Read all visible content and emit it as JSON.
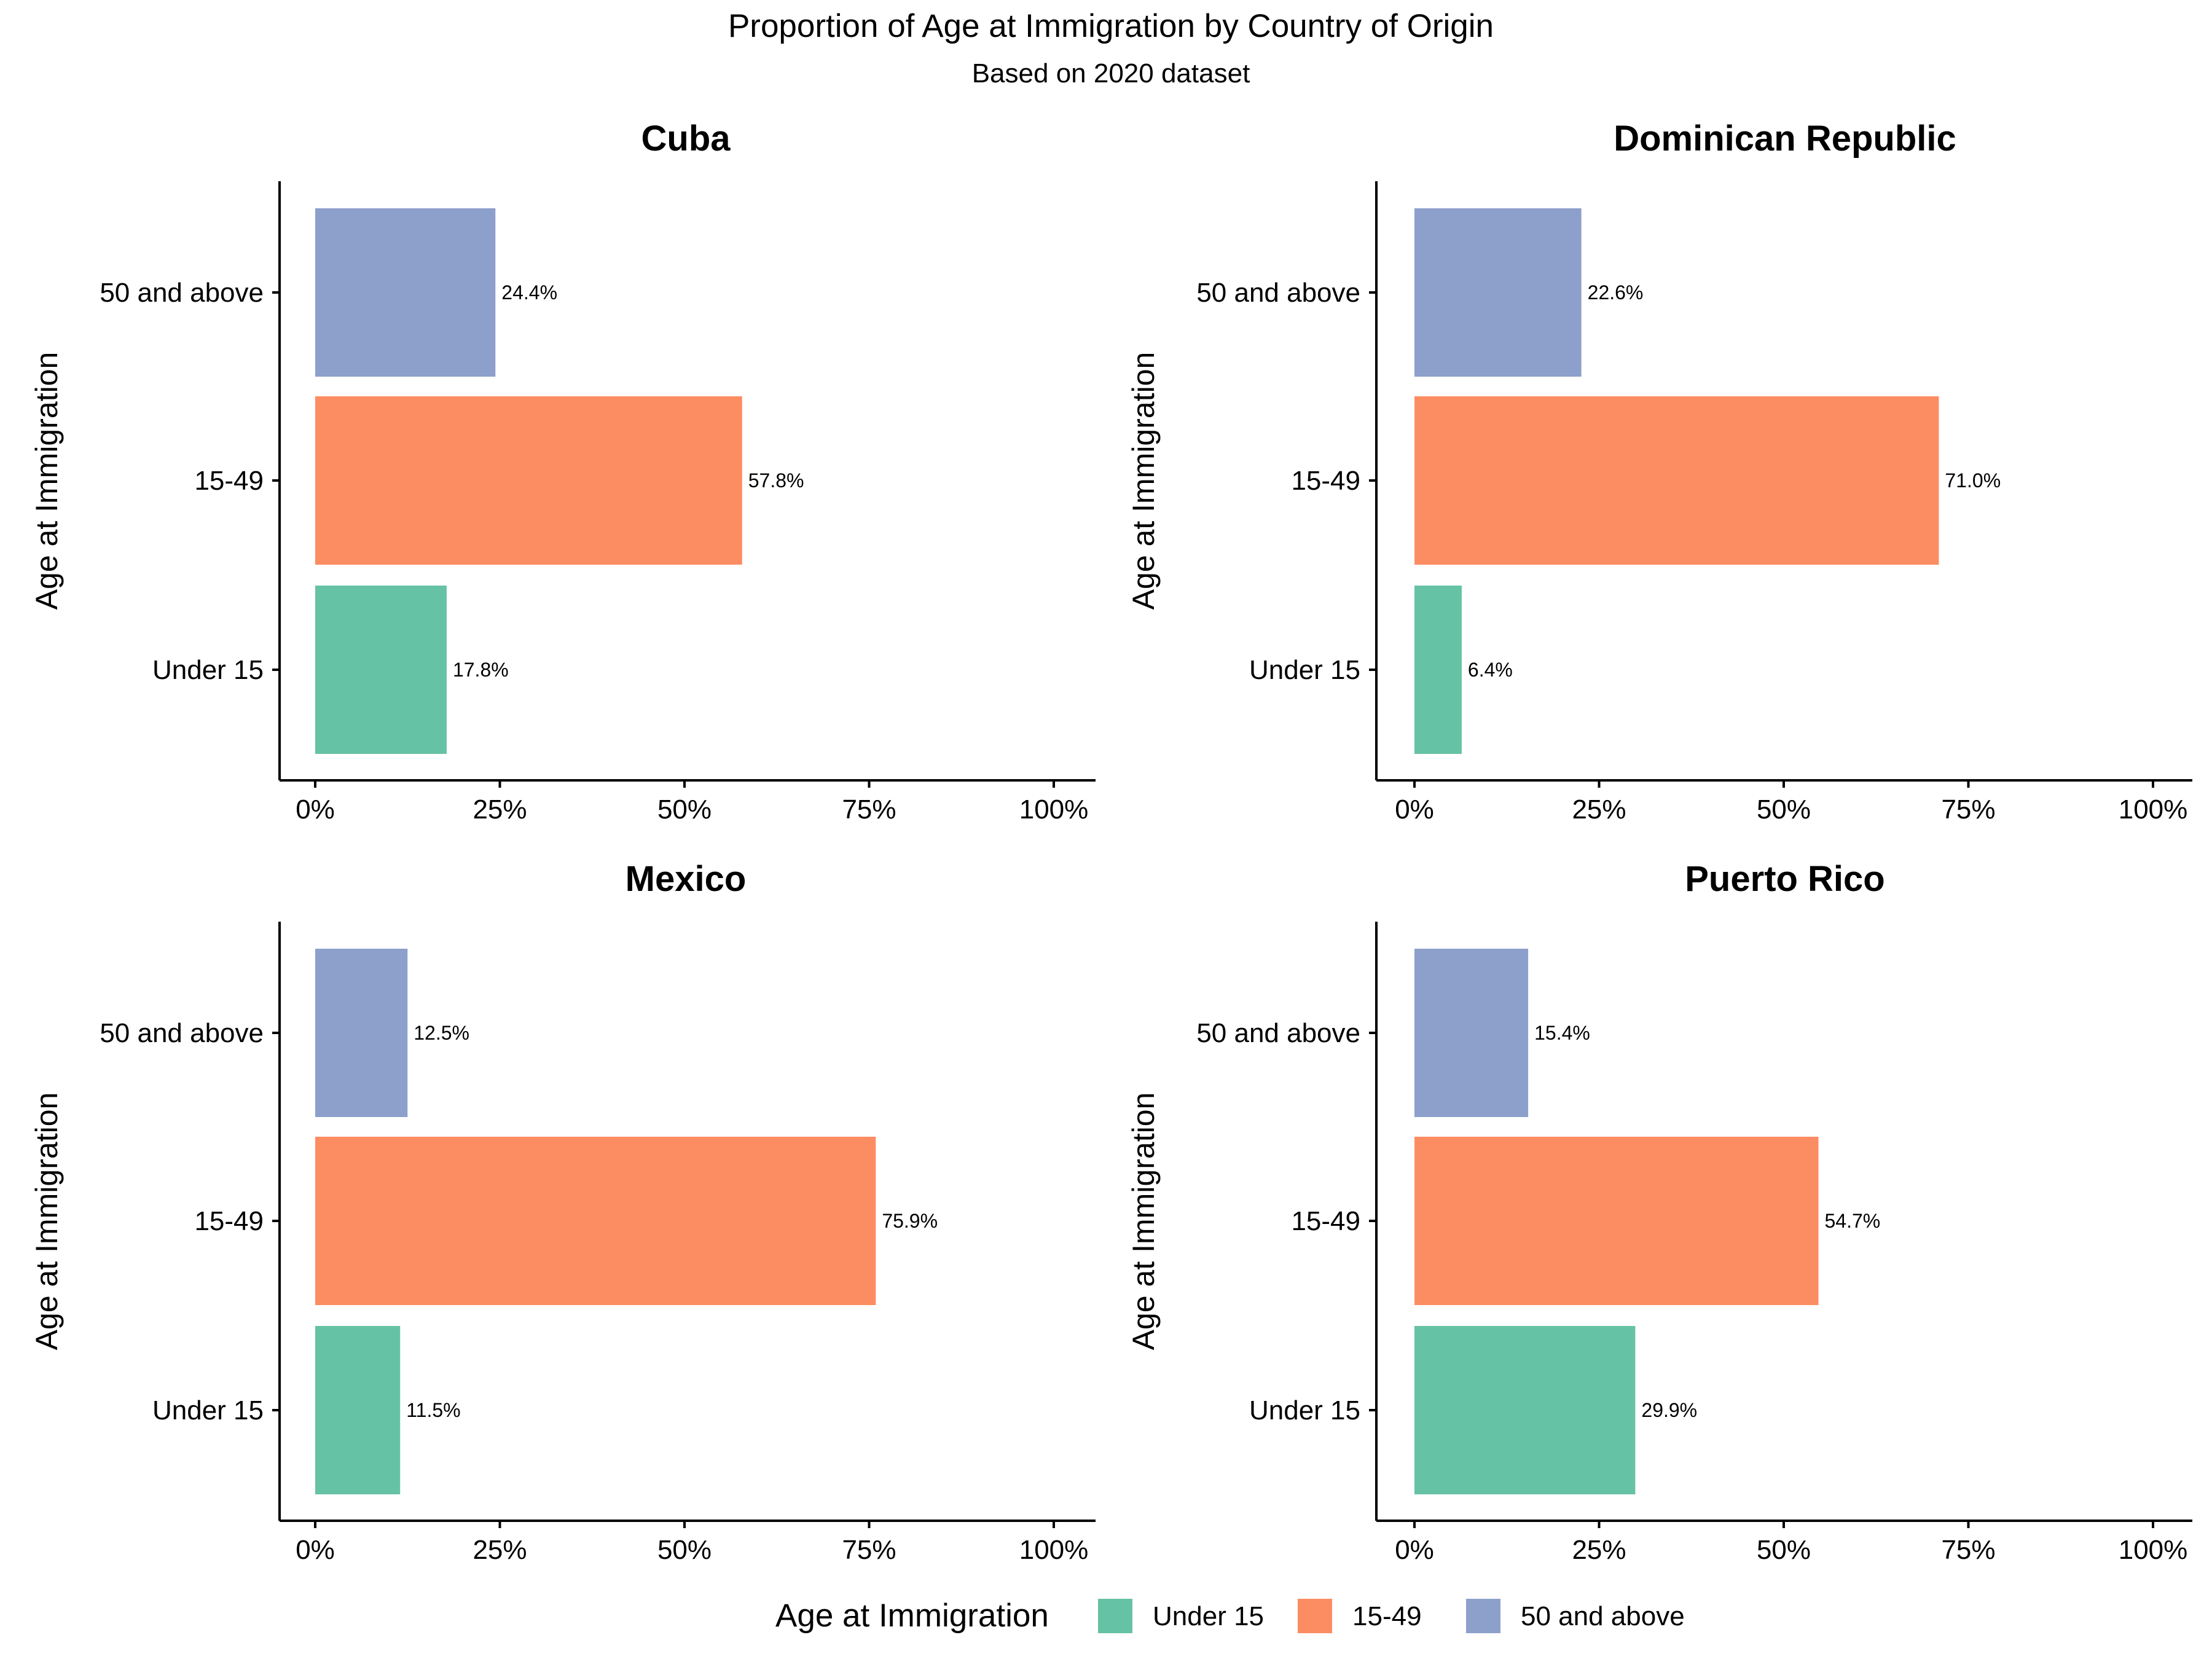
{
  "title": "Proportion of Age at Immigration by Country of Origin",
  "subtitle": "Based on 2020 dataset",
  "legend": {
    "title": "Age at Immigration",
    "items": [
      {
        "label": "Under 15",
        "color": "#66c2a5"
      },
      {
        "label": "15-49",
        "color": "#fc8d62"
      },
      {
        "label": "50 and above",
        "color": "#8da0cb"
      }
    ],
    "position": "bottom"
  },
  "chart_data": [
    {
      "type": "bar",
      "orientation": "horizontal",
      "title": "Cuba",
      "ylabel": "Age at Immigration",
      "xlabel": "",
      "categories": [
        "Under 15",
        "15-49",
        "50 and above"
      ],
      "values": [
        17.8,
        57.8,
        24.4
      ],
      "data_labels": [
        "17.8%",
        "57.8%",
        "24.4%"
      ],
      "xlim": [
        0,
        100
      ],
      "xticks": [
        "0%",
        "25%",
        "50%",
        "75%",
        "100%"
      ],
      "grid": false
    },
    {
      "type": "bar",
      "orientation": "horizontal",
      "title": "Dominican Republic",
      "ylabel": "Age at Immigration",
      "xlabel": "",
      "categories": [
        "Under 15",
        "15-49",
        "50 and above"
      ],
      "values": [
        6.4,
        71.0,
        22.6
      ],
      "data_labels": [
        "6.4%",
        "71.0%",
        "22.6%"
      ],
      "xlim": [
        0,
        100
      ],
      "xticks": [
        "0%",
        "25%",
        "50%",
        "75%",
        "100%"
      ],
      "grid": false
    },
    {
      "type": "bar",
      "orientation": "horizontal",
      "title": "Mexico",
      "ylabel": "Age at Immigration",
      "xlabel": "",
      "categories": [
        "Under 15",
        "15-49",
        "50 and above"
      ],
      "values": [
        11.5,
        75.9,
        12.5
      ],
      "data_labels": [
        "11.5%",
        "75.9%",
        "12.5%"
      ],
      "xlim": [
        0,
        100
      ],
      "xticks": [
        "0%",
        "25%",
        "50%",
        "75%",
        "100%"
      ],
      "grid": false
    },
    {
      "type": "bar",
      "orientation": "horizontal",
      "title": "Puerto Rico",
      "ylabel": "Age at Immigration",
      "xlabel": "",
      "categories": [
        "Under 15",
        "15-49",
        "50 and above"
      ],
      "values": [
        29.9,
        54.7,
        15.4
      ],
      "data_labels": [
        "29.9%",
        "54.7%",
        "15.4%"
      ],
      "xlim": [
        0,
        100
      ],
      "xticks": [
        "0%",
        "25%",
        "50%",
        "75%",
        "100%"
      ],
      "grid": false
    }
  ]
}
